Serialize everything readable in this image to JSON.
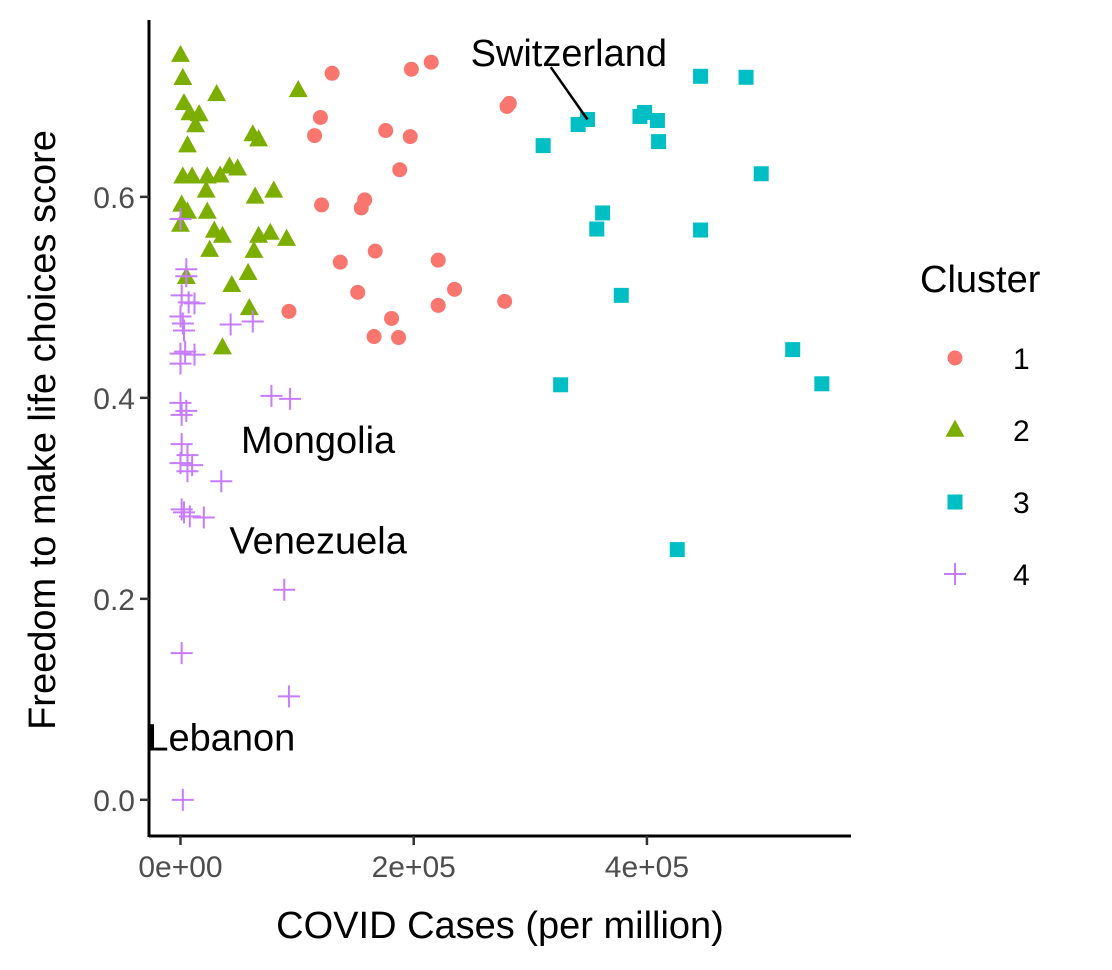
{
  "chart_data": {
    "type": "scatter",
    "xlabel": "COVID Cases (per million)",
    "ylabel": "Freedom to make life choices score",
    "xlim": [
      -27000,
      575000
    ],
    "ylim": [
      -0.036,
      0.776
    ],
    "x_ticks": [
      0,
      200000,
      400000
    ],
    "x_tick_labels": [
      "0e+00",
      "2e+05",
      "4e+05"
    ],
    "y_ticks": [
      0.0,
      0.2,
      0.4,
      0.6
    ],
    "y_tick_labels": [
      "0.0",
      "0.2",
      "0.4",
      "0.6"
    ],
    "grid": false,
    "legend": {
      "title": "Cluster",
      "placement": "right",
      "entries": [
        {
          "label": "1",
          "shape": "circle",
          "color": "#F8766D"
        },
        {
          "label": "2",
          "shape": "triangle",
          "color": "#7CAE00"
        },
        {
          "label": "3",
          "shape": "square",
          "color": "#00BFC4"
        },
        {
          "label": "4",
          "shape": "plus",
          "color": "#C77CFF"
        }
      ]
    },
    "series": [
      {
        "name": "1",
        "shape": "circle",
        "color": "#F8766D",
        "points": [
          [
            130000,
            0.723
          ],
          [
            198000,
            0.727
          ],
          [
            215000,
            0.734
          ],
          [
            280000,
            0.69
          ],
          [
            282000,
            0.693
          ],
          [
            120000,
            0.679
          ],
          [
            115000,
            0.661
          ],
          [
            176000,
            0.666
          ],
          [
            197000,
            0.66
          ],
          [
            188000,
            0.627
          ],
          [
            121000,
            0.592
          ],
          [
            158000,
            0.597
          ],
          [
            155000,
            0.589
          ],
          [
            167000,
            0.546
          ],
          [
            137000,
            0.535
          ],
          [
            221000,
            0.537
          ],
          [
            152000,
            0.505
          ],
          [
            235000,
            0.508
          ],
          [
            221000,
            0.492
          ],
          [
            278000,
            0.496
          ],
          [
            181000,
            0.479
          ],
          [
            93000,
            0.486
          ],
          [
            166000,
            0.461
          ],
          [
            187000,
            0.46
          ]
        ]
      },
      {
        "name": "2",
        "shape": "triangle",
        "color": "#7CAE00",
        "points": [
          [
            0,
            0.741
          ],
          [
            2000,
            0.718
          ],
          [
            3000,
            0.693
          ],
          [
            31000,
            0.702
          ],
          [
            101000,
            0.706
          ],
          [
            8000,
            0.683
          ],
          [
            13000,
            0.671
          ],
          [
            16000,
            0.682
          ],
          [
            6000,
            0.651
          ],
          [
            62000,
            0.662
          ],
          [
            67000,
            0.657
          ],
          [
            2000,
            0.62
          ],
          [
            10000,
            0.62
          ],
          [
            23000,
            0.62
          ],
          [
            34000,
            0.621
          ],
          [
            42000,
            0.63
          ],
          [
            49000,
            0.628
          ],
          [
            22000,
            0.606
          ],
          [
            64000,
            0.6
          ],
          [
            80000,
            0.606
          ],
          [
            1000,
            0.592
          ],
          [
            6000,
            0.585
          ],
          [
            23000,
            0.585
          ],
          [
            0,
            0.572
          ],
          [
            29000,
            0.566
          ],
          [
            36000,
            0.561
          ],
          [
            77000,
            0.564
          ],
          [
            91000,
            0.558
          ],
          [
            67000,
            0.561
          ],
          [
            25000,
            0.547
          ],
          [
            63000,
            0.546
          ],
          [
            58000,
            0.524
          ],
          [
            44000,
            0.512
          ],
          [
            5000,
            0.52
          ],
          [
            59000,
            0.489
          ],
          [
            36000,
            0.45
          ]
        ]
      },
      {
        "name": "3",
        "shape": "square",
        "color": "#00BFC4",
        "points": [
          [
            446000,
            0.72
          ],
          [
            485000,
            0.719
          ],
          [
            341000,
            0.672
          ],
          [
            349000,
            0.677
          ],
          [
            394000,
            0.68
          ],
          [
            398000,
            0.684
          ],
          [
            409000,
            0.676
          ],
          [
            311000,
            0.651
          ],
          [
            410000,
            0.655
          ],
          [
            498000,
            0.623
          ],
          [
            362000,
            0.584
          ],
          [
            357000,
            0.568
          ],
          [
            446000,
            0.567
          ],
          [
            378000,
            0.502
          ],
          [
            525000,
            0.448
          ],
          [
            326000,
            0.413
          ],
          [
            550000,
            0.414
          ],
          [
            426000,
            0.249
          ]
        ]
      },
      {
        "name": "4",
        "shape": "plus",
        "color": "#C77CFF",
        "points": [
          [
            0,
            0.578
          ],
          [
            5000,
            0.528
          ],
          [
            5000,
            0.521
          ],
          [
            1000,
            0.502
          ],
          [
            7000,
            0.495
          ],
          [
            12000,
            0.494
          ],
          [
            0,
            0.481
          ],
          [
            2000,
            0.474
          ],
          [
            43000,
            0.473
          ],
          [
            62000,
            0.476
          ],
          [
            3000,
            0.467
          ],
          [
            0,
            0.444
          ],
          [
            4000,
            0.446
          ],
          [
            12000,
            0.443
          ],
          [
            0,
            0.434
          ],
          [
            78000,
            0.402
          ],
          [
            94000,
            0.399
          ],
          [
            0,
            0.395
          ],
          [
            5000,
            0.387
          ],
          [
            1000,
            0.383
          ],
          [
            1000,
            0.354
          ],
          [
            6000,
            0.343
          ],
          [
            0,
            0.335
          ],
          [
            10000,
            0.333
          ],
          [
            6000,
            0.327
          ],
          [
            35000,
            0.317
          ],
          [
            1000,
            0.289
          ],
          [
            3000,
            0.286
          ],
          [
            8000,
            0.282
          ],
          [
            20000,
            0.281
          ],
          [
            89000,
            0.209
          ],
          [
            1000,
            0.146
          ],
          [
            93000,
            0.103
          ],
          [
            2000,
            0.0
          ]
        ]
      }
    ],
    "annotations": [
      {
        "text": "Switzerland",
        "x": 333000,
        "y": 0.743,
        "target": [
          349000,
          0.677
        ],
        "leader_line": true
      },
      {
        "text": "Mongolia",
        "x": 118000,
        "y": 0.358,
        "target": null,
        "leader_line": false
      },
      {
        "text": "Venezuela",
        "x": 118000,
        "y": 0.258,
        "target": null,
        "leader_line": false
      },
      {
        "text": "Lebanon",
        "x": 35000,
        "y": 0.062,
        "target": null,
        "leader_line": false
      }
    ]
  }
}
